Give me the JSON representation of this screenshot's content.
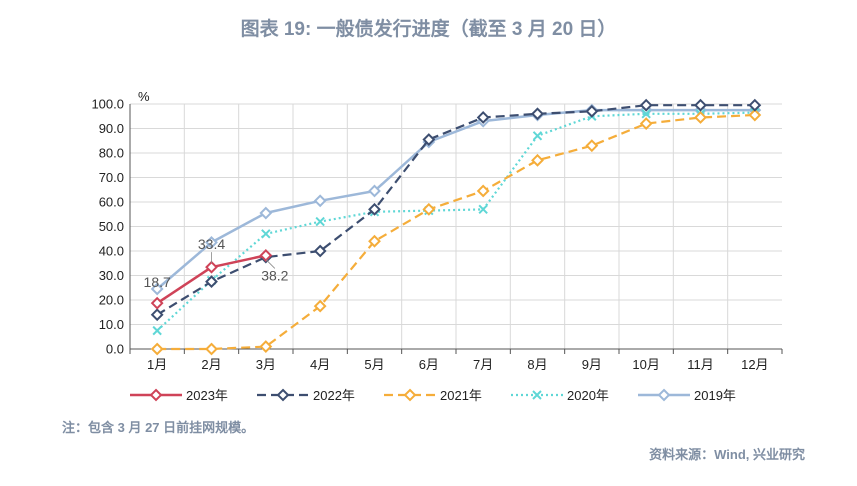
{
  "title": "图表 19: 一般债发行进度（截至 3 月 20 日）",
  "note": "注：包含 3 月 27 日前挂网规模。",
  "source": "资料来源：Wind, 兴业研究",
  "chart_data": {
    "type": "line",
    "title": "图表 19: 一般债发行进度（截至 3 月 20 日）",
    "ylabel": "%",
    "ylim": [
      0,
      100
    ],
    "yticks": [
      "0.0",
      "10.0",
      "20.0",
      "30.0",
      "40.0",
      "50.0",
      "60.0",
      "70.0",
      "80.0",
      "90.0",
      "100.0"
    ],
    "categories": [
      "1月",
      "2月",
      "3月",
      "4月",
      "5月",
      "6月",
      "7月",
      "8月",
      "9月",
      "10月",
      "11月",
      "12月"
    ],
    "grid": true,
    "legend": "bottom",
    "series": [
      {
        "name": "2019年",
        "color": "#9db8d9",
        "style": "solid",
        "marker": "diamond",
        "values": [
          24.5,
          43.5,
          55.5,
          60.5,
          64.5,
          84.5,
          93,
          95.5,
          97.5,
          97.5,
          97.5,
          97.5
        ]
      },
      {
        "name": "2020年",
        "color": "#5fd7d6",
        "style": "dotted",
        "marker": "x",
        "values": [
          7.5,
          28,
          47,
          52,
          56,
          56.5,
          57,
          87,
          95,
          96,
          96,
          96.5
        ]
      },
      {
        "name": "2021年",
        "color": "#f5ad3a",
        "style": "dashed",
        "marker": "diamond",
        "values": [
          0,
          0,
          1,
          17.5,
          44,
          57,
          64.5,
          77,
          83,
          92,
          94.5,
          95.5
        ]
      },
      {
        "name": "2022年",
        "color": "#3d4e70",
        "style": "dashed",
        "marker": "diamond",
        "values": [
          14,
          27.5,
          37.5,
          40,
          57,
          85.5,
          94.5,
          96,
          97,
          99.5,
          99.5,
          99.5
        ]
      },
      {
        "name": "2023年",
        "color": "#cf4358",
        "style": "solid",
        "marker": "diamond",
        "values": [
          18.7,
          33.4,
          38.2,
          null,
          null,
          null,
          null,
          null,
          null,
          null,
          null,
          null
        ]
      }
    ],
    "annotations": [
      {
        "text": "18.7",
        "series": "2023年",
        "index": 0
      },
      {
        "text": "33.4",
        "series": "2023年",
        "index": 1
      },
      {
        "text": "38.2",
        "series": "2023年",
        "index": 2
      }
    ],
    "legend_order": [
      "2023年",
      "2022年",
      "2021年",
      "2020年",
      "2019年"
    ]
  }
}
